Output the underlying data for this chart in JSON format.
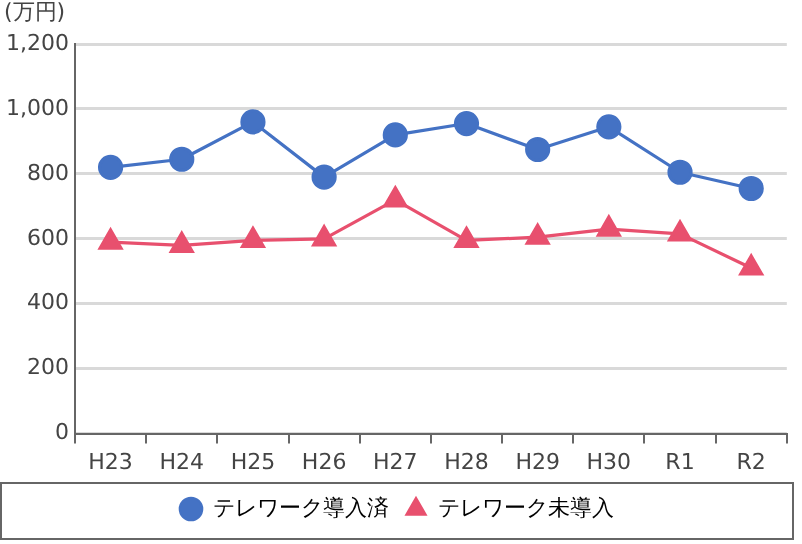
{
  "chart_data": {
    "type": "line",
    "ylabel": "(万円)",
    "categories": [
      "H23",
      "H24",
      "H25",
      "H26",
      "H27",
      "H28",
      "H29",
      "H30",
      "R1",
      "R2"
    ],
    "series": [
      {
        "name": "テレワーク導入済",
        "color": "#4472c4",
        "marker": "circle",
        "values": [
          820,
          845,
          960,
          790,
          920,
          955,
          875,
          945,
          805,
          755
        ]
      },
      {
        "name": "テレワーク未導入",
        "color": "#e8506e",
        "marker": "triangle",
        "values": [
          590,
          580,
          595,
          600,
          720,
          595,
          605,
          630,
          615,
          510
        ]
      }
    ],
    "ylim": [
      0,
      1200
    ],
    "yticks": [
      0,
      200,
      400,
      600,
      800,
      {
        "value": 1000,
        "label": "1,000"
      },
      {
        "value": 1200,
        "label": "1,200"
      }
    ],
    "grid": "y",
    "legend": "bottom",
    "line_style": "solid"
  }
}
